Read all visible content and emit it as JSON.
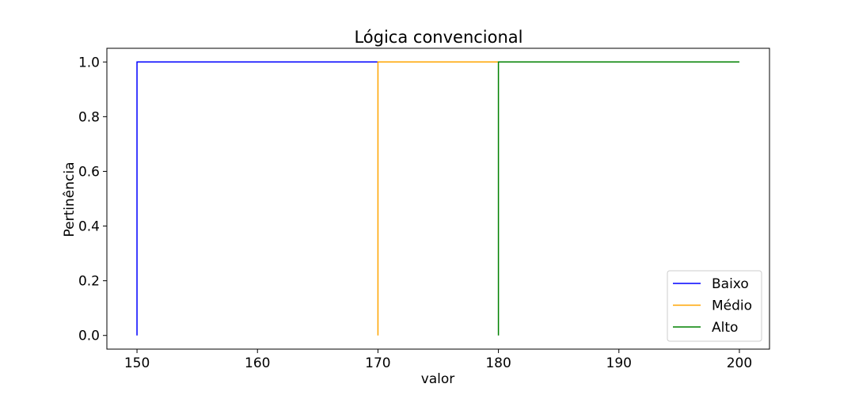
{
  "chart_data": {
    "type": "line",
    "title": "Lógica convencional",
    "xlabel": "valor",
    "ylabel": "Pertinência",
    "xlim": [
      147.5,
      202.5
    ],
    "ylim": [
      -0.05,
      1.05
    ],
    "xticks": [
      150,
      160,
      170,
      180,
      190,
      200
    ],
    "xtick_labels": [
      "150",
      "160",
      "170",
      "180",
      "190",
      "200"
    ],
    "yticks": [
      0.0,
      0.2,
      0.4,
      0.6,
      0.8,
      1.0
    ],
    "ytick_labels": [
      "0.0",
      "0.2",
      "0.4",
      "0.6",
      "0.8",
      "1.0"
    ],
    "grid": false,
    "legend_position": "lower-right",
    "series": [
      {
        "name": "Baixo",
        "color": "#0000ff",
        "x": [
          150,
          150,
          170
        ],
        "y": [
          0,
          1,
          1
        ]
      },
      {
        "name": "Médio",
        "color": "#ffa500",
        "x": [
          170,
          170,
          180
        ],
        "y": [
          0,
          1,
          1
        ]
      },
      {
        "name": "Alto",
        "color": "#008000",
        "x": [
          180,
          180,
          200
        ],
        "y": [
          0,
          1,
          1
        ]
      }
    ]
  }
}
